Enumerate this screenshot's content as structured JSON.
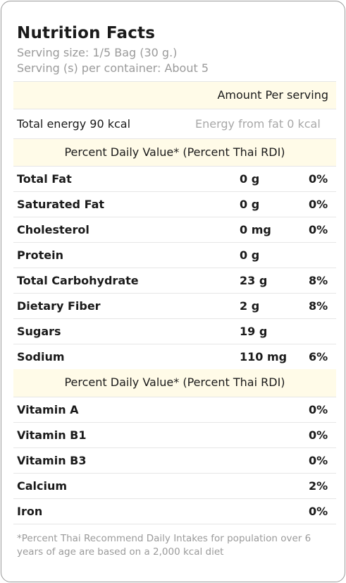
{
  "title": "Nutrition Facts",
  "serving_size": "Serving size:  1/5 Bag (30 g.)",
  "servings_per_container": "Serving (s) per container:  About 5",
  "amount_per_serving": "Amount Per serving",
  "total_energy": "Total energy  90 kcal",
  "energy_from_fat": "Energy from fat 0 kcal",
  "pdv_header": "Percent Daily Value* (Percent Thai RDI)",
  "nutrients": [
    {
      "name": "Total Fat",
      "amount": "0 g",
      "percent": "0%"
    },
    {
      "name": "Saturated Fat",
      "amount": "0 g",
      "percent": "0%"
    },
    {
      "name": "Cholesterol",
      "amount": "0 mg",
      "percent": "0%"
    },
    {
      "name": "Protein",
      "amount": "0 g",
      "percent": ""
    },
    {
      "name": "Total Carbohydrate",
      "amount": "23 g",
      "percent": "8%"
    },
    {
      "name": "Dietary Fiber",
      "amount": "2 g",
      "percent": "8%"
    },
    {
      "name": "Sugars",
      "amount": "19 g",
      "percent": ""
    },
    {
      "name": "Sodium",
      "amount": "110 mg",
      "percent": "6%"
    }
  ],
  "pdv_header_2": "Percent Daily Value* (Percent Thai RDI)",
  "vitamins": [
    {
      "name": "Vitamin A",
      "percent": "0%"
    },
    {
      "name": "Vitamin B1",
      "percent": "0%"
    },
    {
      "name": "Vitamin B3",
      "percent": "0%"
    },
    {
      "name": "Calcium",
      "percent": "2%"
    },
    {
      "name": "Iron",
      "percent": "0%"
    }
  ],
  "footnote": "*Percent Thai Recommend Daily Intakes for population over 6 years of age are based on a 2,000 kcal diet"
}
